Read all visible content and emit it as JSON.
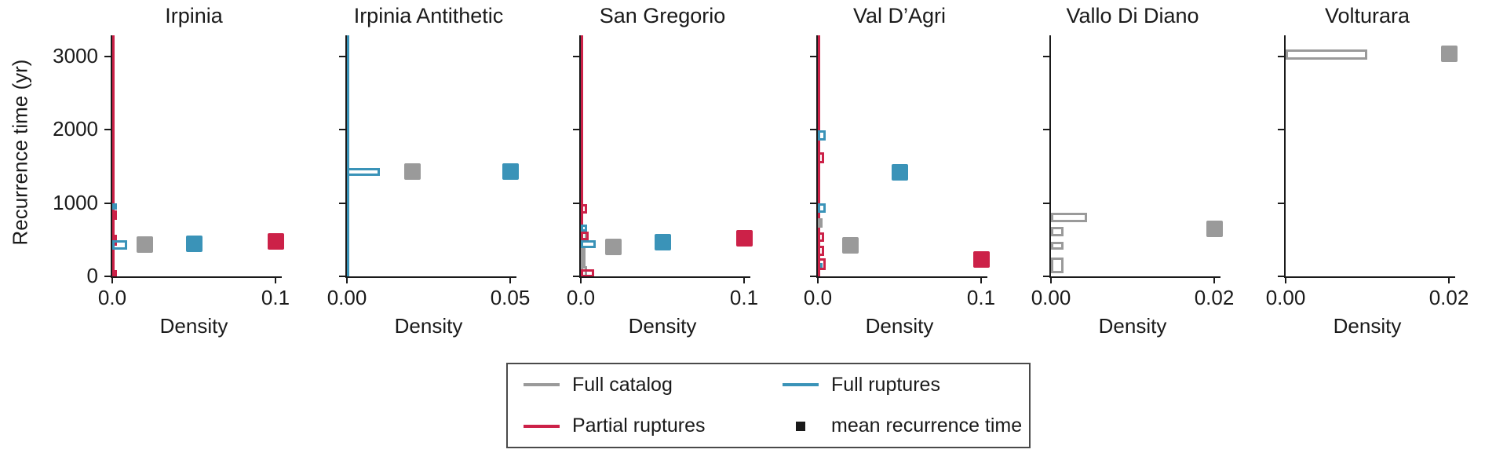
{
  "figure": {
    "ylabel": "Recurrence time (yr)",
    "xlabel": "Density",
    "yticks": [
      0,
      1000,
      2000,
      3000
    ],
    "ylim": [
      0,
      3290
    ],
    "colors": {
      "full_catalog": "#9a9a9a",
      "full_ruptures": "#3a93b8",
      "partial_ruptures": "#cc2148",
      "mean_marker_legend": "#1a1a1a",
      "axis": "#1a1a1a"
    },
    "legend": [
      {
        "label": "Full catalog",
        "swatch": "line",
        "series": "full_catalog"
      },
      {
        "label": "Full ruptures",
        "swatch": "line",
        "series": "full_ruptures"
      },
      {
        "label": "Partial ruptures",
        "swatch": "line",
        "series": "partial_ruptures"
      },
      {
        "label": "mean recurrence time",
        "swatch": "square",
        "series": "mean_marker_legend"
      }
    ]
  },
  "chart_data": [
    {
      "type": "bar",
      "orientation": "horizontal",
      "title": "Irpinia",
      "xlabel": "Density",
      "xticks": [
        {
          "label": "0.0",
          "value": 0
        },
        {
          "label": "0.1",
          "value": 0.1
        }
      ],
      "xmax": 0.1,
      "spine_series": [
        "partial_ruptures"
      ],
      "bars": [
        {
          "series": "full_ruptures",
          "time_range": [
            920,
            1000
          ],
          "density": 0.002
        },
        {
          "series": "partial_ruptures",
          "time_range": [
            780,
            910
          ],
          "density": 0.003
        },
        {
          "series": "partial_ruptures",
          "time_range": [
            430,
            580
          ],
          "density": 0.003
        },
        {
          "series": "full_ruptures",
          "time_range": [
            380,
            500
          ],
          "density": 0.009
        },
        {
          "series": "full_ruptures",
          "time_range": [
            0,
            60
          ],
          "density": 0.002
        },
        {
          "series": "partial_ruptures",
          "time_range": [
            0,
            100
          ],
          "density": 0.003
        }
      ],
      "means": [
        {
          "series": "full_catalog",
          "density": 0.02,
          "time": 430
        },
        {
          "series": "full_ruptures",
          "density": 0.05,
          "time": 450
        },
        {
          "series": "partial_ruptures",
          "density": 0.1,
          "time": 480
        }
      ]
    },
    {
      "type": "bar",
      "orientation": "horizontal",
      "title": "Irpinia Antithetic",
      "xlabel": "Density",
      "xticks": [
        {
          "label": "0.00",
          "value": 0
        },
        {
          "label": "0.05",
          "value": 0.05
        }
      ],
      "xmax": 0.05,
      "spine_series": [
        "full_ruptures"
      ],
      "bars": [
        {
          "series": "full_ruptures",
          "time_range": [
            1380,
            1490
          ],
          "density": 0.01
        }
      ],
      "means": [
        {
          "series": "full_catalog",
          "density": 0.02,
          "time": 1430
        },
        {
          "series": "full_ruptures",
          "density": 0.05,
          "time": 1430
        }
      ]
    },
    {
      "type": "bar",
      "orientation": "horizontal",
      "title": "San Gregorio",
      "xlabel": "Density",
      "xticks": [
        {
          "label": "0.0",
          "value": 0
        },
        {
          "label": "0.1",
          "value": 0.1
        }
      ],
      "xmax": 0.1,
      "spine_series": [
        "partial_ruptures"
      ],
      "bars": [
        {
          "series": "partial_ruptures",
          "time_range": [
            870,
            1000
          ],
          "density": 0.004
        },
        {
          "series": "full_ruptures",
          "time_range": [
            620,
            720
          ],
          "density": 0.004
        },
        {
          "series": "full_catalog",
          "time_range": [
            500,
            620
          ],
          "density": 0.004
        },
        {
          "series": "partial_ruptures",
          "time_range": [
            500,
            620
          ],
          "density": 0.005
        },
        {
          "series": "full_ruptures",
          "time_range": [
            400,
            500
          ],
          "density": 0.009
        },
        {
          "series": "full_catalog",
          "time_range": [
            150,
            400
          ],
          "density": 0.002
        },
        {
          "series": "full_catalog",
          "time_range": [
            0,
            150
          ],
          "density": 0.004
        },
        {
          "series": "partial_ruptures",
          "time_range": [
            0,
            110
          ],
          "density": 0.008
        }
      ],
      "means": [
        {
          "series": "full_catalog",
          "density": 0.02,
          "time": 400
        },
        {
          "series": "full_ruptures",
          "density": 0.05,
          "time": 470
        },
        {
          "series": "partial_ruptures",
          "density": 0.1,
          "time": 520
        }
      ]
    },
    {
      "type": "bar",
      "orientation": "horizontal",
      "title": "Val D’Agri",
      "xlabel": "Density",
      "xticks": [
        {
          "label": "0.0",
          "value": 0
        },
        {
          "label": "0.1",
          "value": 0.1
        }
      ],
      "xmax": 0.1,
      "spine_series": [
        "partial_ruptures"
      ],
      "bars": [
        {
          "series": "full_ruptures",
          "time_range": [
            1870,
            2000
          ],
          "density": 0.005
        },
        {
          "series": "partial_ruptures",
          "time_range": [
            1550,
            1700
          ],
          "density": 0.004
        },
        {
          "series": "full_ruptures",
          "time_range": [
            880,
            1010
          ],
          "density": 0.005
        },
        {
          "series": "full_catalog",
          "time_range": [
            670,
            800
          ],
          "density": 0.003
        },
        {
          "series": "partial_ruptures",
          "time_range": [
            480,
            610
          ],
          "density": 0.004
        },
        {
          "series": "partial_ruptures",
          "time_range": [
            290,
            430
          ],
          "density": 0.004
        },
        {
          "series": "full_ruptures",
          "time_range": [
            100,
            190
          ],
          "density": 0.003
        },
        {
          "series": "partial_ruptures",
          "time_range": [
            100,
            260
          ],
          "density": 0.005
        }
      ],
      "means": [
        {
          "series": "full_catalog",
          "density": 0.02,
          "time": 420
        },
        {
          "series": "full_ruptures",
          "density": 0.05,
          "time": 1415
        },
        {
          "series": "partial_ruptures",
          "density": 0.1,
          "time": 230
        }
      ]
    },
    {
      "type": "bar",
      "orientation": "horizontal",
      "title": "Vallo Di Diano",
      "xlabel": "Density",
      "xticks": [
        {
          "label": "0.00",
          "value": 0
        },
        {
          "label": "0.02",
          "value": 0.02
        }
      ],
      "xmax": 0.02,
      "spine_series": [],
      "bars": [
        {
          "series": "full_catalog",
          "time_range": [
            750,
            880
          ],
          "density": 0.0044
        },
        {
          "series": "full_catalog",
          "time_range": [
            560,
            690
          ],
          "density": 0.0015
        },
        {
          "series": "full_catalog",
          "time_range": [
            370,
            480
          ],
          "density": 0.0015
        },
        {
          "series": "full_catalog",
          "time_range": [
            50,
            270
          ],
          "density": 0.0015
        }
      ],
      "means": [
        {
          "series": "full_catalog",
          "density": 0.02,
          "time": 645
        }
      ]
    },
    {
      "type": "bar",
      "orientation": "horizontal",
      "title": "Volturara",
      "xlabel": "Density",
      "xticks": [
        {
          "label": "0.00",
          "value": 0
        },
        {
          "label": "0.02",
          "value": 0.02
        }
      ],
      "xmax": 0.02,
      "spine_series": [],
      "bars": [
        {
          "series": "full_catalog",
          "time_range": [
            2970,
            3110
          ],
          "density": 0.01
        }
      ],
      "means": [
        {
          "series": "full_catalog",
          "density": 0.02,
          "time": 3040
        }
      ]
    }
  ]
}
